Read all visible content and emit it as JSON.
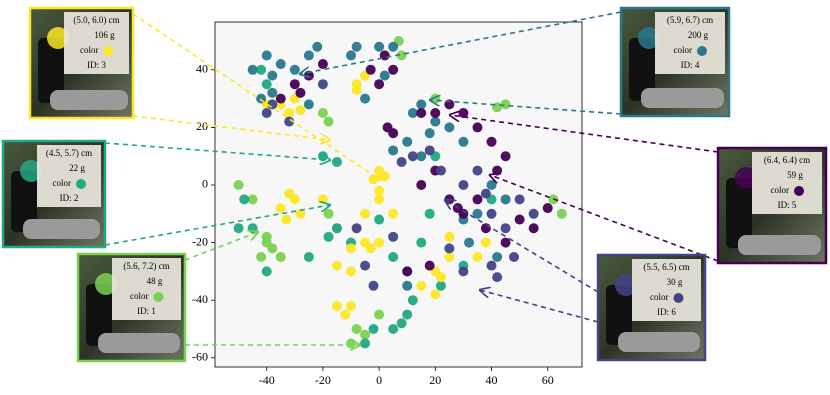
{
  "chart_data": {
    "type": "scatter",
    "xlim": [
      -58.4,
      72.2
    ],
    "ylim": [
      -63.2,
      56.6
    ],
    "xticks": [
      -40,
      -20,
      0,
      20,
      40,
      60
    ],
    "yticks": [
      -60,
      -40,
      -20,
      0,
      20,
      40
    ],
    "series": [
      {
        "color": "#7ad151",
        "x": [
          -20,
          -18,
          7,
          8,
          42,
          45,
          20,
          -8,
          -5,
          -10,
          -40,
          -42,
          -35,
          -38,
          -15,
          -18,
          -45,
          -50,
          65,
          62,
          -40,
          0
        ],
        "y": [
          25,
          22,
          50,
          45,
          27,
          28,
          30,
          -50,
          -52,
          -55,
          -20,
          -25,
          -25,
          -22,
          -15,
          -10,
          -5,
          0,
          -10,
          -5,
          -18,
          -45
        ]
      },
      {
        "color": "#22a884",
        "x": [
          -40,
          -42,
          -20,
          -15,
          -15,
          -18,
          -10,
          0,
          -5,
          -2,
          5,
          8,
          10,
          12,
          10,
          5,
          15,
          -48,
          -45,
          -50,
          -40,
          30,
          40,
          20,
          18,
          22,
          -25
        ],
        "y": [
          35,
          40,
          10,
          8,
          -15,
          -18,
          -20,
          -12,
          -55,
          -50,
          -50,
          -48,
          -45,
          -40,
          -30,
          -25,
          -20,
          -5,
          -15,
          -15,
          -30,
          -28,
          -5,
          10,
          -10,
          -35,
          -25
        ]
      },
      {
        "color": "#fde725",
        "x": [
          -30,
          -35,
          -40,
          -32,
          -28,
          -5,
          -8,
          -8,
          0,
          2,
          -2,
          0,
          0,
          -5,
          -8,
          -5,
          -10,
          -20,
          -30,
          -35,
          -32,
          -28,
          -33,
          -10,
          -15,
          -12,
          -15,
          -10,
          20,
          22,
          25,
          20,
          15,
          35,
          38,
          0,
          -3,
          25,
          5
        ],
        "y": [
          30,
          28,
          28,
          25,
          26,
          38,
          35,
          33,
          5,
          3,
          2,
          -2,
          -5,
          -10,
          -15,
          -20,
          -22,
          -5,
          -5,
          -8,
          -3,
          -10,
          -12,
          -30,
          -28,
          -45,
          -42,
          -42,
          -30,
          -32,
          -25,
          -38,
          -35,
          -25,
          -20,
          -20,
          -22,
          -18,
          -10
        ]
      },
      {
        "color": "#2a788e",
        "x": [
          -40,
          -45,
          -38,
          -35,
          -30,
          -25,
          -22,
          -8,
          -10,
          0,
          5,
          2,
          -5,
          -25,
          15,
          12,
          20,
          25,
          18,
          10,
          5,
          15,
          30,
          40,
          45,
          30,
          35,
          -42,
          -38,
          10,
          32,
          42
        ],
        "y": [
          45,
          40,
          38,
          42,
          40,
          45,
          48,
          48,
          45,
          48,
          48,
          38,
          30,
          28,
          28,
          25,
          22,
          20,
          18,
          15,
          12,
          10,
          15,
          0,
          -5,
          -12,
          -10,
          30,
          32,
          -35,
          -20,
          -25
        ]
      },
      {
        "color": "#440154",
        "x": [
          -30,
          -28,
          -25,
          -20,
          -35,
          0,
          -3,
          2,
          5,
          3,
          5,
          15,
          20,
          25,
          30,
          35,
          40,
          45,
          42,
          20,
          15,
          25,
          28,
          35,
          50,
          55,
          60,
          45,
          38,
          10,
          18,
          30
        ],
        "y": [
          35,
          32,
          38,
          42,
          30,
          35,
          40,
          45,
          40,
          20,
          18,
          25,
          25,
          28,
          25,
          20,
          15,
          10,
          5,
          5,
          0,
          -5,
          -8,
          -5,
          -12,
          -15,
          -8,
          -20,
          -15,
          -30,
          -28,
          -10
        ]
      },
      {
        "color": "#414487",
        "x": [
          -38,
          -32,
          -20,
          -40,
          8,
          12,
          18,
          22,
          30,
          35,
          40,
          45,
          40,
          42,
          30,
          25,
          5,
          -5,
          -2,
          -8,
          50,
          55,
          48,
          38
        ],
        "y": [
          28,
          22,
          35,
          25,
          8,
          10,
          12,
          5,
          0,
          5,
          -10,
          -15,
          -28,
          -32,
          -30,
          -22,
          -18,
          -28,
          -35,
          -15,
          -5,
          -10,
          -25,
          -3
        ]
      }
    ],
    "annotations": [
      {
        "size": "(5.0, 6.0) cm",
        "mass": "106 g",
        "color_label": "color",
        "id": "ID: 3",
        "color": "#fde725"
      },
      {
        "size": "(4.5, 5.7) cm",
        "mass": "22 g",
        "color_label": "color",
        "id": "ID: 2",
        "color": "#22a884"
      },
      {
        "size": "(5.6, 7.2) cm",
        "mass": "48 g",
        "color_label": "color",
        "id": "ID: 1",
        "color": "#7ad151"
      },
      {
        "size": "(5.9, 6.7) cm",
        "mass": "200 g",
        "color_label": "color",
        "id": "ID: 4",
        "color": "#2a788e"
      },
      {
        "size": "(6.4, 6.4) cm",
        "mass": "59 g",
        "color_label": "color",
        "id": "ID: 5",
        "color": "#440154"
      },
      {
        "size": "(5.5, 6.5) cm",
        "mass": "30 g",
        "color_label": "color",
        "id": "ID: 6",
        "color": "#414487"
      }
    ]
  }
}
